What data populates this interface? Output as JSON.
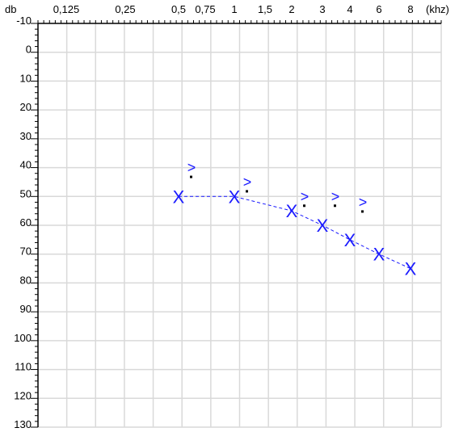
{
  "chart_data": {
    "type": "scatter",
    "title": "",
    "x_unit": "(khz)",
    "y_unit": "db",
    "x_ticks": [
      "0,125",
      "0,25",
      "0,5",
      "0,75",
      "1",
      "1,5",
      "2",
      "3",
      "4",
      "6",
      "8"
    ],
    "y_ticks": [
      -10,
      0,
      10,
      20,
      30,
      40,
      50,
      60,
      70,
      80,
      90,
      100,
      110,
      120,
      130
    ],
    "ylim": [
      -10,
      130
    ],
    "grid": true,
    "series": [
      {
        "marker": "X",
        "line": "dashed",
        "points": [
          {
            "x": "0,5",
            "y": 50
          },
          {
            "x": "1",
            "y": 50
          },
          {
            "x": "2",
            "y": 55
          },
          {
            "x": "3",
            "y": 60
          },
          {
            "x": "4",
            "y": 65
          },
          {
            "x": "6",
            "y": 70
          },
          {
            "x": "8",
            "y": 75
          }
        ]
      },
      {
        "marker": ">",
        "line": "none",
        "points": [
          {
            "x": "0,5",
            "y": 40
          },
          {
            "x": "1",
            "y": 45
          },
          {
            "x": "2",
            "y": 50
          },
          {
            "x": "3",
            "y": 50
          },
          {
            "x": "4",
            "y": 52
          }
        ]
      }
    ],
    "colors": {
      "marker": "#1a1aff",
      "grid": "#d9d9d9",
      "axis": "#000000"
    }
  }
}
